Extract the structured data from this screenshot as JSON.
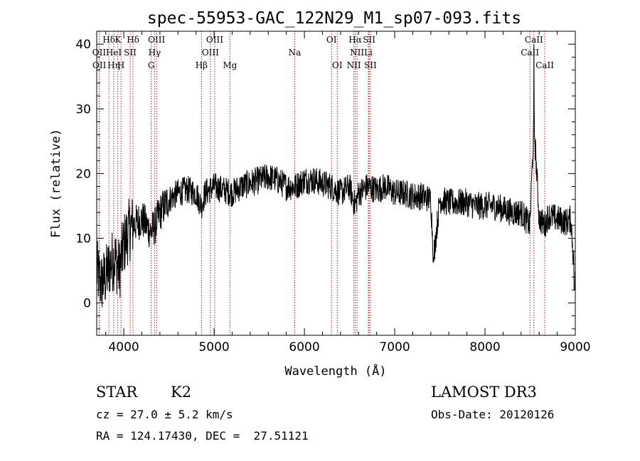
{
  "chart_data": {
    "type": "line",
    "title": "spec-55953-GAC_122N29_M1_sp07-093.fits",
    "xlabel": "Wavelength (Å)",
    "ylabel": "Flux (relative)",
    "xlim": [
      3700,
      9000
    ],
    "ylim": [
      -5,
      42
    ],
    "xticks": [
      4000,
      5000,
      6000,
      7000,
      8000,
      9000
    ],
    "yticks": [
      0,
      10,
      20,
      30,
      40
    ],
    "series": [
      {
        "x": [
          3700,
          3750,
          3800,
          3850,
          3900,
          3950,
          4000,
          4050,
          4100,
          4200,
          4300,
          4350,
          4400,
          4500,
          4600,
          4700,
          4800,
          4860,
          4900,
          5000,
          5100,
          5200,
          5300,
          5400,
          5500,
          5600,
          5700,
          5800,
          5900,
          6000,
          6100,
          6200,
          6300,
          6400,
          6500,
          6560,
          6600,
          6700,
          6800,
          6900,
          7000,
          7100,
          7200,
          7300,
          7400,
          7430,
          7500,
          7600,
          7700,
          7800,
          7900,
          8000,
          8100,
          8200,
          8300,
          8400,
          8498,
          8542,
          8600,
          8662,
          8700,
          8800,
          8900,
          8950,
          9000
        ],
        "y": [
          5,
          3,
          4,
          6,
          7,
          5,
          9,
          11,
          12,
          13,
          11,
          12,
          14,
          16,
          17,
          17.5,
          17,
          15,
          17,
          18,
          17.5,
          17,
          18,
          18.5,
          19,
          19.5,
          19,
          18,
          18,
          19,
          19,
          18.5,
          18,
          17,
          18,
          15,
          17,
          18,
          17.5,
          18,
          17,
          17,
          16.5,
          16.5,
          16,
          7,
          16,
          15.5,
          15.5,
          15.5,
          15,
          15,
          15,
          14.5,
          14,
          14,
          12,
          28,
          13,
          12,
          13.5,
          13,
          12.5,
          13,
          3
        ]
      }
    ],
    "spectral_lines": [
      {
        "name": "Hδ",
        "wavelength": 3835,
        "row": 0
      },
      {
        "name": "OII",
        "wavelength": 3727,
        "row": 1
      },
      {
        "name": "OII",
        "wavelength": 3729,
        "row": 2
      },
      {
        "name": "HeI",
        "wavelength": 3889,
        "row": 1
      },
      {
        "name": "Hη",
        "wavelength": 3889,
        "row": 2
      },
      {
        "name": "K",
        "wavelength": 3934,
        "row": 0
      },
      {
        "name": "SII",
        "wavelength": 4070,
        "row": 1
      },
      {
        "name": "H",
        "wavelength": 3969,
        "row": 2
      },
      {
        "name": "Hδ",
        "wavelength": 4102,
        "row": 0
      },
      {
        "name": "OIII",
        "wavelength": 4363,
        "row": 0
      },
      {
        "name": "Hγ",
        "wavelength": 4341,
        "row": 1
      },
      {
        "name": "G",
        "wavelength": 4304,
        "row": 2
      },
      {
        "name": "OIII",
        "wavelength": 5007,
        "row": 0
      },
      {
        "name": "OIII",
        "wavelength": 4959,
        "row": 1
      },
      {
        "name": "Hβ",
        "wavelength": 4861,
        "row": 2
      },
      {
        "name": "Mg",
        "wavelength": 5175,
        "row": 2
      },
      {
        "name": "Na",
        "wavelength": 5893,
        "row": 1
      },
      {
        "name": "OI",
        "wavelength": 6300,
        "row": 0
      },
      {
        "name": "OI",
        "wavelength": 6364,
        "row": 2
      },
      {
        "name": "Hα",
        "wavelength": 6563,
        "row": 0
      },
      {
        "name": "SII",
        "wavelength": 6717,
        "row": 0
      },
      {
        "name": "NII",
        "wavelength": 6583,
        "row": 1
      },
      {
        "name": "Li",
        "wavelength": 6708,
        "row": 1
      },
      {
        "name": "NII",
        "wavelength": 6548,
        "row": 2
      },
      {
        "name": "SII",
        "wavelength": 6731,
        "row": 2
      },
      {
        "name": "CaII",
        "wavelength": 8542,
        "row": 0
      },
      {
        "name": "CaII",
        "wavelength": 8498,
        "row": 1
      },
      {
        "name": "CaII",
        "wavelength": 8662,
        "row": 2
      }
    ],
    "line_color": "#000000",
    "marker_color": "#b22222",
    "grid": false
  },
  "info": {
    "class": "STAR",
    "subclass": "K2",
    "cz": "cz = 27.0 ± 5.2 km/s",
    "coords": "RA = 124.17430, DEC =  27.51121",
    "survey": "LAMOST DR3",
    "obs_date": "Obs-Date: 20120126"
  }
}
